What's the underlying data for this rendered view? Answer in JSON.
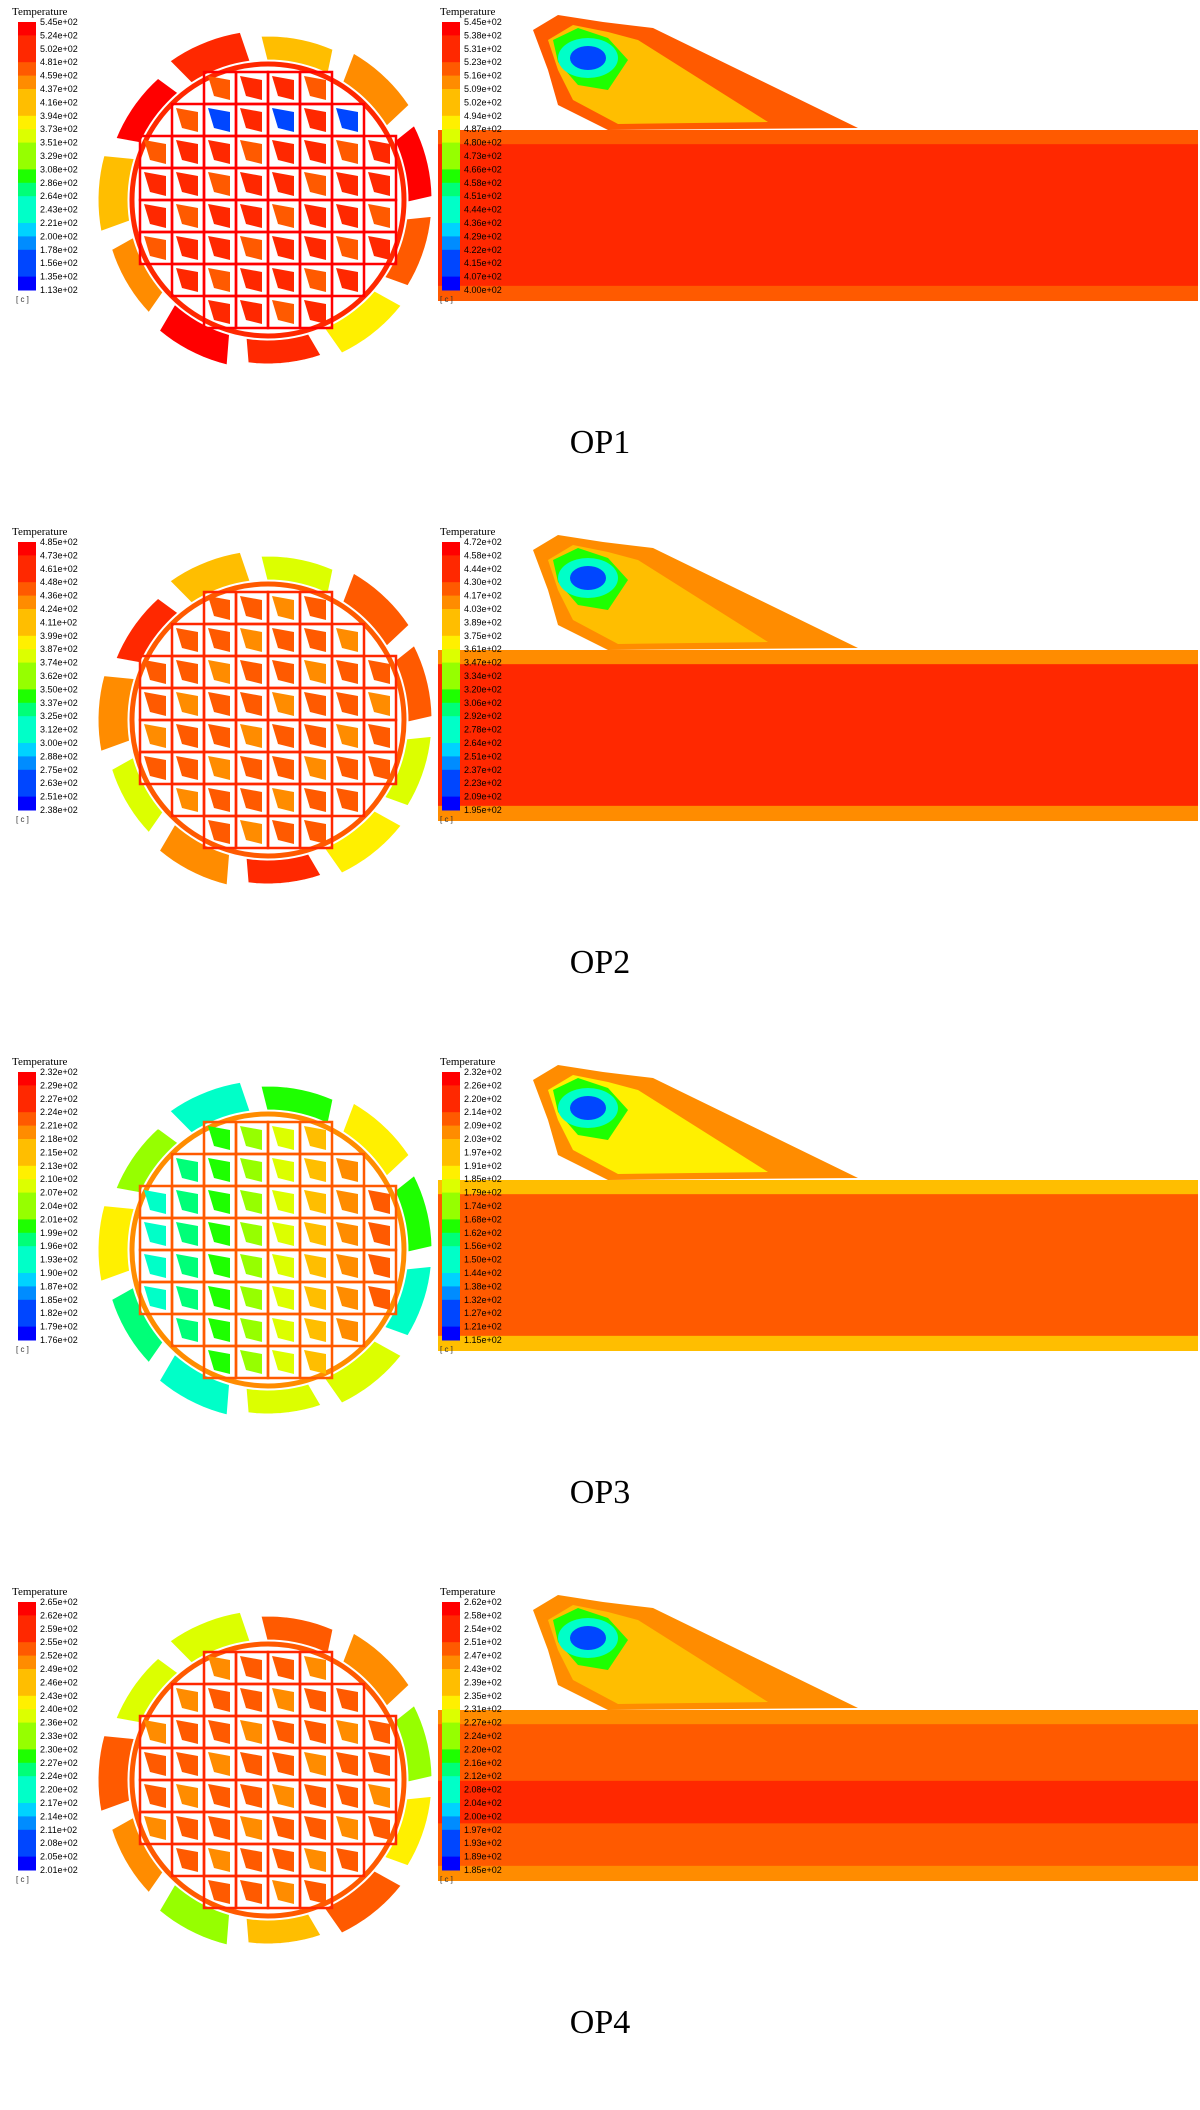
{
  "legend_title": "Temperature",
  "unit": "[ c ]",
  "colormap": [
    "#0000ff",
    "#0046ff",
    "#008cff",
    "#00d2ff",
    "#00ffc8",
    "#00ff78",
    "#1eff00",
    "#96ff00",
    "#dcff00",
    "#fff000",
    "#ffbe00",
    "#ff8c00",
    "#ff5a00",
    "#ff2800",
    "#ff0000"
  ],
  "panels": [
    {
      "caption": "OP1",
      "left": {
        "labels": [
          "5.45e+02",
          "5.24e+02",
          "5.02e+02",
          "4.81e+02",
          "4.59e+02",
          "4.37e+02",
          "4.16e+02",
          "3.94e+02",
          "3.73e+02",
          "3.51e+02",
          "3.29e+02",
          "3.08e+02",
          "2.86e+02",
          "2.64e+02",
          "2.43e+02",
          "2.21e+02",
          "2.00e+02",
          "1.78e+02",
          "1.56e+02",
          "1.35e+02",
          "1.13e+02"
        ]
      },
      "right": {
        "labels": [
          "5.45e+02",
          "5.38e+02",
          "5.31e+02",
          "5.23e+02",
          "5.16e+02",
          "5.09e+02",
          "5.02e+02",
          "4.94e+02",
          "4.87e+02",
          "4.80e+02",
          "4.73e+02",
          "4.66e+02",
          "4.58e+02",
          "4.51e+02",
          "4.44e+02",
          "4.36e+02",
          "4.29e+02",
          "4.22e+02",
          "4.15e+02",
          "4.07e+02",
          "4.00e+02"
        ]
      }
    },
    {
      "caption": "OP2",
      "left": {
        "labels": [
          "4.85e+02",
          "4.73e+02",
          "4.61e+02",
          "4.48e+02",
          "4.36e+02",
          "4.24e+02",
          "4.11e+02",
          "3.99e+02",
          "3.87e+02",
          "3.74e+02",
          "3.62e+02",
          "3.50e+02",
          "3.37e+02",
          "3.25e+02",
          "3.12e+02",
          "3.00e+02",
          "2.88e+02",
          "2.75e+02",
          "2.63e+02",
          "2.51e+02",
          "2.38e+02"
        ]
      },
      "right": {
        "labels": [
          "4.72e+02",
          "4.58e+02",
          "4.44e+02",
          "4.30e+02",
          "4.17e+02",
          "4.03e+02",
          "3.89e+02",
          "3.75e+02",
          "3.61e+02",
          "3.47e+02",
          "3.34e+02",
          "3.20e+02",
          "3.06e+02",
          "2.92e+02",
          "2.78e+02",
          "2.64e+02",
          "2.51e+02",
          "2.37e+02",
          "2.23e+02",
          "2.09e+02",
          "1.95e+02"
        ]
      }
    },
    {
      "caption": "OP3",
      "left": {
        "labels": [
          "2.32e+02",
          "2.29e+02",
          "2.27e+02",
          "2.24e+02",
          "2.21e+02",
          "2.18e+02",
          "2.15e+02",
          "2.13e+02",
          "2.10e+02",
          "2.07e+02",
          "2.04e+02",
          "2.01e+02",
          "1.99e+02",
          "1.96e+02",
          "1.93e+02",
          "1.90e+02",
          "1.87e+02",
          "1.85e+02",
          "1.82e+02",
          "1.79e+02",
          "1.76e+02"
        ]
      },
      "right": {
        "labels": [
          "2.32e+02",
          "2.26e+02",
          "2.20e+02",
          "2.14e+02",
          "2.09e+02",
          "2.03e+02",
          "1.97e+02",
          "1.91e+02",
          "1.85e+02",
          "1.79e+02",
          "1.74e+02",
          "1.68e+02",
          "1.62e+02",
          "1.56e+02",
          "1.50e+02",
          "1.44e+02",
          "1.38e+02",
          "1.32e+02",
          "1.27e+02",
          "1.21e+02",
          "1.15e+02"
        ]
      }
    },
    {
      "caption": "OP4",
      "left": {
        "labels": [
          "2.65e+02",
          "2.62e+02",
          "2.59e+02",
          "2.55e+02",
          "2.52e+02",
          "2.49e+02",
          "2.46e+02",
          "2.43e+02",
          "2.40e+02",
          "2.36e+02",
          "2.33e+02",
          "2.30e+02",
          "2.27e+02",
          "2.24e+02",
          "2.20e+02",
          "2.17e+02",
          "2.14e+02",
          "2.11e+02",
          "2.08e+02",
          "2.05e+02",
          "2.01e+02"
        ]
      },
      "right": {
        "labels": [
          "2.62e+02",
          "2.58e+02",
          "2.54e+02",
          "2.51e+02",
          "2.47e+02",
          "2.43e+02",
          "2.39e+02",
          "2.35e+02",
          "2.31e+02",
          "2.27e+02",
          "2.24e+02",
          "2.20e+02",
          "2.16e+02",
          "2.12e+02",
          "2.08e+02",
          "2.04e+02",
          "2.00e+02",
          "1.97e+02",
          "1.93e+02",
          "1.89e+02",
          "1.85e+02"
        ]
      }
    }
  ]
}
